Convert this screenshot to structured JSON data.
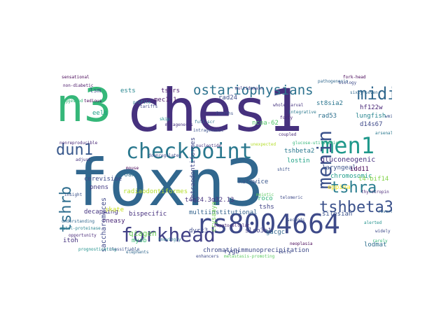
{
  "word_cloud": {
    "words": [
      {
        "text": "foxn3",
        "color": "#31678e"
      },
      {
        "text": "ches1",
        "color": "#46317e"
      },
      {
        "text": "n3",
        "color": "#35b779"
      },
      {
        "text": "checkpoint",
        "color": "#2a788e"
      },
      {
        "text": "rs8004664",
        "color": "#3e4a89"
      },
      {
        "text": "forkhead",
        "color": "#424186"
      },
      {
        "text": "men1",
        "color": "#1f988b"
      },
      {
        "text": "menin",
        "color": "#3b528b"
      },
      {
        "text": "midi",
        "color": "#31688e"
      },
      {
        "text": "ostariophysians",
        "color": "#2c728e"
      },
      {
        "text": "tshra",
        "color": "#287c8e"
      },
      {
        "text": "tshbeta3",
        "color": "#3b518b"
      },
      {
        "text": "dun1",
        "color": "#38588c"
      },
      {
        "text": "tshrb",
        "color": "#2e6e8e"
      },
      {
        "text": "chromatinimmunoprecipitation",
        "color": "#3e4a89"
      },
      {
        "text": "saccharomyces",
        "color": "#3f4889"
      },
      {
        "text": "multiinstitutional",
        "color": "#33638d"
      },
      {
        "text": "tetraodontiformes",
        "color": "#404688"
      },
      {
        "text": "tshbeta2",
        "color": "#2a788e"
      },
      {
        "text": "laryngeal",
        "color": "#3b528b"
      },
      {
        "text": "gluconeogenic",
        "color": "#46327e"
      },
      {
        "text": "lostin",
        "color": "#20a386"
      },
      {
        "text": "rad53",
        "color": "#2d708e"
      },
      {
        "text": "lungfish",
        "color": "#25848e"
      },
      {
        "text": "cerevisiae",
        "color": "#3e4c8a"
      },
      {
        "text": "decapping",
        "color": "#453581"
      },
      {
        "text": "bispecific",
        "color": "#46307e"
      },
      {
        "text": "silesian",
        "color": "#3b518b"
      },
      {
        "text": "qiagen",
        "color": "#6ccd5a"
      },
      {
        "text": "dyrk3",
        "color": "#3e4a89"
      },
      {
        "text": "slco3a1",
        "color": "#433e85"
      },
      {
        "text": "katowice",
        "color": "#39558c"
      },
      {
        "text": "rygb",
        "color": "#3e4989"
      },
      {
        "text": "lodmat",
        "color": "#2e6f8e"
      },
      {
        "text": "gacgc",
        "color": "#31688e"
      },
      {
        "text": "itoh",
        "color": "#46327e"
      },
      {
        "text": "rneasy",
        "color": "#482576"
      },
      {
        "text": "idd11",
        "color": "#440154"
      },
      {
        "text": "mec1-1",
        "color": "#481769"
      },
      {
        "text": "tshrs",
        "color": "#481a6c"
      },
      {
        "text": "hf122w",
        "color": "#482677"
      },
      {
        "text": "d14s67",
        "color": "#3e4989"
      },
      {
        "text": "st8sia2",
        "color": "#2b758e"
      },
      {
        "text": "rad24",
        "color": "#3d4e8a"
      },
      {
        "text": "ncoa-62",
        "color": "#52c569"
      },
      {
        "text": "t4q24.3q32.13",
        "color": "#46337f"
      },
      {
        "text": "radiaodontiformes",
        "color": "#b5de2b"
      },
      {
        "text": "crysaaya",
        "color": "#75d054"
      },
      {
        "text": "chromosomic",
        "color": "#1e9c89"
      },
      {
        "text": "eppina",
        "color": "#fde725"
      },
      {
        "text": "mysb",
        "color": "#3dbc74"
      },
      {
        "text": "skate",
        "color": "#c8e020"
      },
      {
        "text": "pnens",
        "color": "#443a83"
      },
      {
        "text": "foan",
        "color": "#2e6f8e"
      },
      {
        "text": "t4-bif14",
        "color": "#84d44b"
      },
      {
        "text": "ests",
        "color": "#25858e"
      },
      {
        "text": "eels",
        "color": "#1fa187"
      },
      {
        "text": "lsm",
        "color": "#3b528b"
      },
      {
        "text": "tshs",
        "color": "#414487"
      },
      {
        "text": "roco",
        "color": "#32b67a"
      },
      {
        "text": "wmi",
        "color": "#3b528b"
      },
      {
        "text": "non-diabetic",
        "color": "#481467"
      },
      {
        "text": "suggested",
        "color": "#35b779"
      },
      {
        "text": "sensational",
        "color": "#440154"
      },
      {
        "text": "nonreproducible",
        "color": "#482878"
      },
      {
        "text": "tariffs",
        "color": "#3e4a89"
      },
      {
        "text": "understanding",
        "color": "#31688e"
      },
      {
        "text": "metal-proteinase",
        "color": "#26828e"
      },
      {
        "text": "intragenomic",
        "color": "#3b528b"
      },
      {
        "text": "downregulated",
        "color": "#3e4989"
      },
      {
        "text": "mutagenesis",
        "color": "#46337f"
      },
      {
        "text": "prognosticating",
        "color": "#21918c"
      },
      {
        "text": "hepatocellular",
        "color": "#482677"
      },
      {
        "text": "neoplasia",
        "color": "#440154"
      },
      {
        "text": "knowingly",
        "color": "#2a788e"
      },
      {
        "text": "meiotic",
        "color": "#5ec962"
      },
      {
        "text": "fourths",
        "color": "#3b528b"
      },
      {
        "text": "full-scr",
        "color": "#2c728e"
      },
      {
        "text": "coupled",
        "color": "#482878"
      },
      {
        "text": "telomeric",
        "color": "#3e4a89"
      },
      {
        "text": "unexpected",
        "color": "#b5de2b"
      },
      {
        "text": "classifiable",
        "color": "#3b528b"
      },
      {
        "text": "pathogenesis",
        "color": "#31688e"
      },
      {
        "text": "fork-head",
        "color": "#440154"
      },
      {
        "text": "whole-larval",
        "color": "#46337f"
      },
      {
        "text": "multidomain",
        "color": "#443983"
      },
      {
        "text": "integrative",
        "color": "#2a788e"
      },
      {
        "text": "sixty-seven",
        "color": "#31688e"
      },
      {
        "text": "biology",
        "color": "#3e4a89"
      },
      {
        "text": "thyrotropin",
        "color": "#482878"
      },
      {
        "text": "glucose-utilization",
        "color": "#35b779"
      },
      {
        "text": "seconds",
        "color": "#3b528b"
      },
      {
        "text": "metastasis-promoting",
        "color": "#5ec962"
      },
      {
        "text": "enhancers",
        "color": "#3e4a89"
      },
      {
        "text": "elephants",
        "color": "#31688e"
      },
      {
        "text": "opportunity",
        "color": "#482878"
      },
      {
        "text": "insight",
        "color": "#3b528b"
      },
      {
        "text": "profile",
        "color": "#2a788e"
      },
      {
        "text": "tedious",
        "color": "#440154"
      },
      {
        "text": "nucleotide",
        "color": "#46337f"
      },
      {
        "text": "alerted",
        "color": "#21918c"
      },
      {
        "text": "widely",
        "color": "#3e4a89"
      },
      {
        "text": "rarely",
        "color": "#35b779"
      },
      {
        "text": "reversal",
        "color": "#31688e"
      },
      {
        "text": "forty",
        "color": "#482677"
      },
      {
        "text": "shift",
        "color": "#3b528b"
      },
      {
        "text": "arsenal",
        "color": "#2a788e"
      },
      {
        "text": "adjust",
        "color": "#46337f"
      },
      {
        "text": "cells",
        "color": "#3e4a89"
      },
      {
        "text": "mouse",
        "color": "#440154"
      },
      {
        "text": "skip",
        "color": "#21918c"
      }
    ]
  }
}
